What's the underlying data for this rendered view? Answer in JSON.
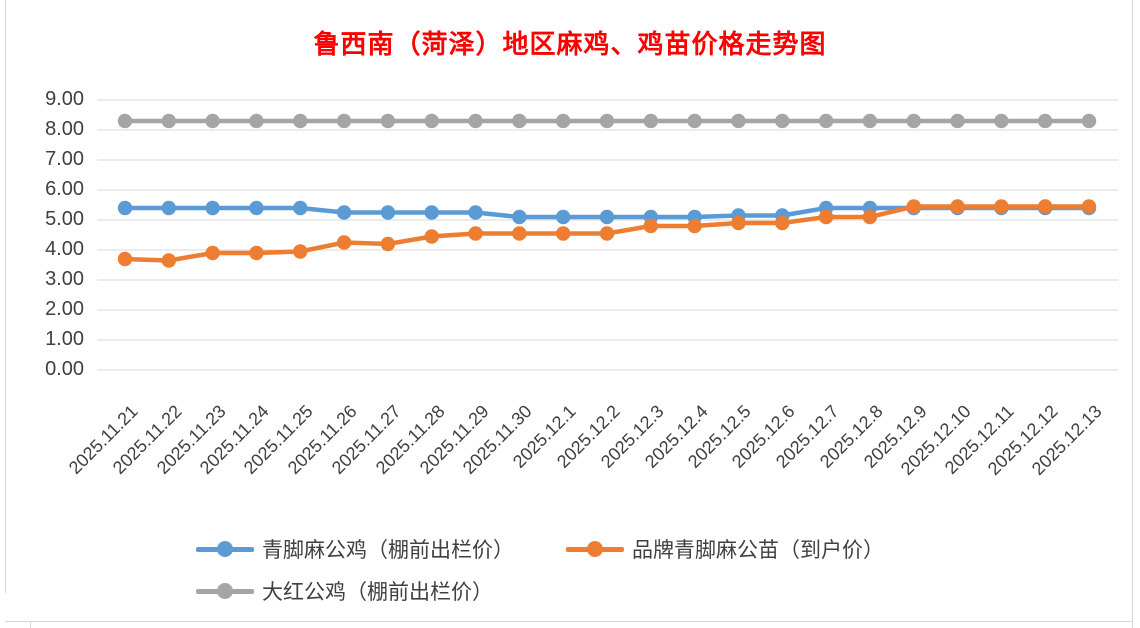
{
  "title": "鲁西南（菏泽）地区麻鸡、鸡苗价格走势图",
  "title_color": "#FF0000",
  "chart_data": {
    "type": "line",
    "title": "鲁西南（菏泽）地区麻鸡、鸡苗价格走势图",
    "xlabel": "",
    "ylabel": "",
    "ylim": [
      0,
      9
    ],
    "y_tick_step": 1,
    "grid": true,
    "legend_position": "bottom",
    "gridline_color": "#D9D9D9",
    "axis_text_color": "#404040",
    "y_ticks": [
      "0.00",
      "1.00",
      "2.00",
      "3.00",
      "4.00",
      "5.00",
      "6.00",
      "7.00",
      "8.00",
      "9.00"
    ],
    "categories": [
      "2025.11.21",
      "2025.11.22",
      "2025.11.23",
      "2025.11.24",
      "2025.11.25",
      "2025.11.26",
      "2025.11.27",
      "2025.11.28",
      "2025.11.29",
      "2025.11.30",
      "2025.12.1",
      "2025.12.2",
      "2025.12.3",
      "2025.12.4",
      "2025.12.5",
      "2025.12.6",
      "2025.12.7",
      "2025.12.8",
      "2025.12.9",
      "2025.12.10",
      "2025.12.11",
      "2025.12.12",
      "2025.12.13"
    ],
    "series": [
      {
        "name": "青脚麻公鸡（棚前出栏价）",
        "color": "#5B9BD5",
        "values": [
          5.4,
          5.4,
          5.4,
          5.4,
          5.4,
          5.25,
          5.25,
          5.25,
          5.25,
          5.1,
          5.1,
          5.1,
          5.1,
          5.1,
          5.15,
          5.15,
          5.4,
          5.4,
          5.4,
          5.4,
          5.4,
          5.4,
          5.4
        ]
      },
      {
        "name": "品牌青脚麻公苗（到户价）",
        "color": "#ED7D31",
        "values": [
          3.7,
          3.65,
          3.9,
          3.9,
          3.95,
          4.25,
          4.2,
          4.45,
          4.55,
          4.55,
          4.55,
          4.55,
          4.8,
          4.8,
          4.9,
          4.9,
          5.1,
          5.1,
          5.45,
          5.45,
          5.45,
          5.45,
          5.45
        ]
      },
      {
        "name": "大红公鸡（棚前出栏价）",
        "color": "#A5A5A5",
        "values": [
          8.3,
          8.3,
          8.3,
          8.3,
          8.3,
          8.3,
          8.3,
          8.3,
          8.3,
          8.3,
          8.3,
          8.3,
          8.3,
          8.3,
          8.3,
          8.3,
          8.3,
          8.3,
          8.3,
          8.3,
          8.3,
          8.3,
          8.3
        ]
      }
    ]
  }
}
